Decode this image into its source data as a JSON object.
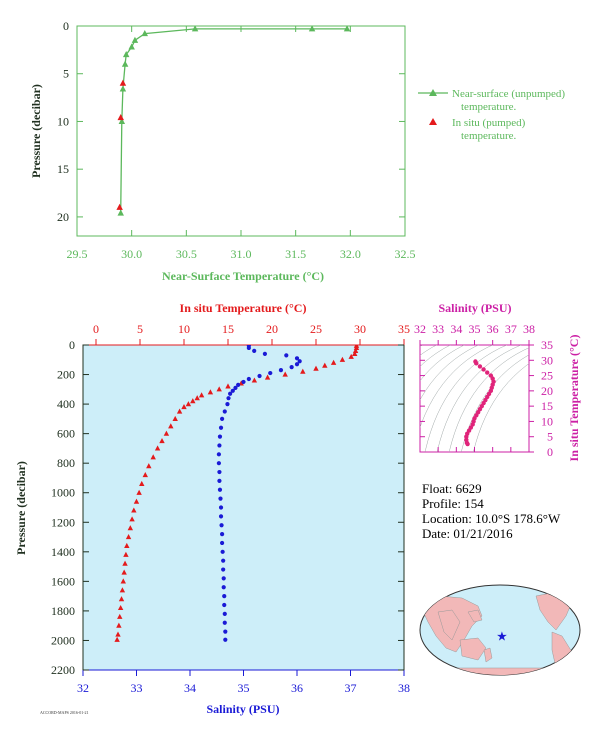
{
  "chart_data": [
    {
      "id": "near-surface",
      "type": "line",
      "xlabel": "Near-Surface Temperature (°C)",
      "ylabel": "Pressure (decibar)",
      "xlim": [
        29.5,
        32.5
      ],
      "ylim": [
        22,
        0
      ],
      "x_ticks": [
        29.5,
        30,
        30.5,
        31,
        31.5,
        32,
        32.5
      ],
      "x_tick_labels": [
        "29.5",
        "30.0",
        "30.5",
        "31.0",
        "31.5",
        "32.0",
        "32.5"
      ],
      "y_ticks": [
        0,
        5,
        10,
        15,
        20
      ],
      "y_tick_labels": [
        "0",
        "5",
        "10",
        "15",
        "20"
      ],
      "legend_position": "right",
      "series": [
        {
          "name": "Near-surface (unpumped) temperature.",
          "color": "#5cb85c",
          "marker": "triangle",
          "line": true,
          "points": [
            [
              31.97,
              0.3
            ],
            [
              31.65,
              0.3
            ],
            [
              30.58,
              0.3
            ],
            [
              30.12,
              0.8
            ],
            [
              30.03,
              1.5
            ],
            [
              30.0,
              2.2
            ],
            [
              29.95,
              3.0
            ],
            [
              29.94,
              4.0
            ],
            [
              29.92,
              6.6
            ],
            [
              29.91,
              10.0
            ],
            [
              29.9,
              19.6
            ]
          ]
        },
        {
          "name": "In situ (pumped) temperature.",
          "color": "#e41a1c",
          "marker": "triangle",
          "line": false,
          "points": [
            [
              29.92,
              6.0
            ],
            [
              29.9,
              9.6
            ],
            [
              29.89,
              19.0
            ]
          ]
        }
      ]
    },
    {
      "id": "profile",
      "type": "line",
      "xlabel_top": "In situ Temperature (°C)",
      "xlabel_bottom": "Salinity (PSU)",
      "ylabel": "Pressure (decibar)",
      "xlim_top": [
        0,
        35
      ],
      "xlim_bottom": [
        32,
        38
      ],
      "ylim": [
        2200,
        0
      ],
      "top_ticks": [
        0,
        5,
        10,
        15,
        20,
        25,
        30,
        35
      ],
      "top_tick_labels": [
        "0",
        "5",
        "10",
        "15",
        "20",
        "25",
        "30",
        "35"
      ],
      "bottom_ticks": [
        32,
        33,
        34,
        35,
        36,
        37,
        38
      ],
      "bottom_tick_labels": [
        "32",
        "33",
        "34",
        "35",
        "36",
        "37",
        "38"
      ],
      "y_ticks": [
        0,
        200,
        400,
        600,
        800,
        1000,
        1200,
        1400,
        1600,
        1800,
        2000,
        2200
      ],
      "y_tick_labels": [
        "0",
        "200",
        "400",
        "600",
        "800",
        "1000",
        "1200",
        "1400",
        "1600",
        "1800",
        "2000",
        "2200"
      ],
      "series": [
        {
          "name": "temperature",
          "color": "#e41a1c",
          "marker": "triangle",
          "points": [
            [
              29.6,
              5
            ],
            [
              29.6,
              20
            ],
            [
              29.5,
              40
            ],
            [
              29.4,
              60
            ],
            [
              29.0,
              80
            ],
            [
              28.0,
              100
            ],
            [
              27.0,
              120
            ],
            [
              26.0,
              140
            ],
            [
              25.0,
              160
            ],
            [
              23.5,
              180
            ],
            [
              21.5,
              200
            ],
            [
              19.5,
              220
            ],
            [
              18.0,
              240
            ],
            [
              16.5,
              260
            ],
            [
              15.0,
              280
            ],
            [
              14.0,
              300
            ],
            [
              13.0,
              320
            ],
            [
              12.0,
              340
            ],
            [
              11.5,
              360
            ],
            [
              11.0,
              380
            ],
            [
              10.5,
              400
            ],
            [
              10.0,
              420
            ],
            [
              9.5,
              450
            ],
            [
              9.0,
              500
            ],
            [
              8.5,
              550
            ],
            [
              8.0,
              600
            ],
            [
              7.5,
              650
            ],
            [
              7.0,
              700
            ],
            [
              6.5,
              760
            ],
            [
              6.0,
              820
            ],
            [
              5.6,
              880
            ],
            [
              5.2,
              940
            ],
            [
              4.9,
              1000
            ],
            [
              4.6,
              1060
            ],
            [
              4.3,
              1120
            ],
            [
              4.1,
              1180
            ],
            [
              3.9,
              1240
            ],
            [
              3.7,
              1300
            ],
            [
              3.5,
              1360
            ],
            [
              3.4,
              1420
            ],
            [
              3.3,
              1480
            ],
            [
              3.2,
              1540
            ],
            [
              3.1,
              1600
            ],
            [
              3.0,
              1660
            ],
            [
              2.9,
              1720
            ],
            [
              2.8,
              1780
            ],
            [
              2.7,
              1840
            ],
            [
              2.6,
              1900
            ],
            [
              2.5,
              1960
            ],
            [
              2.4,
              1995
            ]
          ]
        },
        {
          "name": "salinity",
          "color": "#1a1ad6",
          "marker": "circle",
          "points": [
            [
              35.1,
              5
            ],
            [
              35.1,
              20
            ],
            [
              35.2,
              40
            ],
            [
              35.4,
              60
            ],
            [
              35.8,
              70
            ],
            [
              36.0,
              90
            ],
            [
              36.05,
              110
            ],
            [
              36.0,
              130
            ],
            [
              35.9,
              150
            ],
            [
              35.7,
              170
            ],
            [
              35.5,
              190
            ],
            [
              35.3,
              210
            ],
            [
              35.1,
              230
            ],
            [
              35.0,
              250
            ],
            [
              34.9,
              270
            ],
            [
              34.85,
              290
            ],
            [
              34.8,
              310
            ],
            [
              34.75,
              330
            ],
            [
              34.72,
              360
            ],
            [
              34.7,
              400
            ],
            [
              34.65,
              450
            ],
            [
              34.6,
              500
            ],
            [
              34.58,
              560
            ],
            [
              34.56,
              620
            ],
            [
              34.55,
              680
            ],
            [
              34.54,
              740
            ],
            [
              34.54,
              800
            ],
            [
              34.55,
              860
            ],
            [
              34.55,
              920
            ],
            [
              34.56,
              980
            ],
            [
              34.57,
              1040
            ],
            [
              34.58,
              1100
            ],
            [
              34.58,
              1160
            ],
            [
              34.59,
              1220
            ],
            [
              34.6,
              1280
            ],
            [
              34.6,
              1340
            ],
            [
              34.61,
              1400
            ],
            [
              34.62,
              1460
            ],
            [
              34.62,
              1520
            ],
            [
              34.63,
              1580
            ],
            [
              34.63,
              1640
            ],
            [
              34.64,
              1700
            ],
            [
              34.64,
              1760
            ],
            [
              34.65,
              1820
            ],
            [
              34.65,
              1880
            ],
            [
              34.66,
              1940
            ],
            [
              34.66,
              1995
            ]
          ]
        }
      ]
    },
    {
      "id": "ts-diagram",
      "type": "scatter",
      "title": "Salinity (PSU)",
      "ylabel": "In situ Temperature (°C)",
      "xlim": [
        32,
        38
      ],
      "ylim": [
        0,
        35
      ],
      "x_ticks": [
        32,
        33,
        34,
        35,
        36,
        37,
        38
      ],
      "x_tick_labels": [
        "32",
        "33",
        "34",
        "35",
        "36",
        "37",
        "38"
      ],
      "y_ticks": [
        0,
        5,
        10,
        15,
        20,
        25,
        30,
        35
      ],
      "y_tick_labels": [
        "0",
        "5",
        "10",
        "15",
        "20",
        "25",
        "30",
        "35"
      ],
      "series": [
        {
          "name": "TS",
          "color": "#e0247a",
          "marker": "circle",
          "points": [
            [
              35.05,
              29.6
            ],
            [
              35.1,
              29.0
            ],
            [
              35.3,
              28.0
            ],
            [
              35.5,
              27.0
            ],
            [
              35.7,
              26.0
            ],
            [
              35.9,
              25.0
            ],
            [
              36.0,
              24.0
            ],
            [
              36.05,
              23.0
            ],
            [
              36.0,
              22.0
            ],
            [
              35.95,
              21.0
            ],
            [
              35.9,
              20.0
            ],
            [
              35.8,
              19.0
            ],
            [
              35.7,
              18.0
            ],
            [
              35.6,
              17.0
            ],
            [
              35.5,
              16.0
            ],
            [
              35.4,
              15.0
            ],
            [
              35.3,
              14.0
            ],
            [
              35.2,
              13.0
            ],
            [
              35.1,
              12.0
            ],
            [
              35.0,
              11.0
            ],
            [
              34.95,
              10.0
            ],
            [
              34.9,
              9.0
            ],
            [
              34.8,
              8.0
            ],
            [
              34.7,
              7.0
            ],
            [
              34.6,
              6.0
            ],
            [
              34.55,
              5.0
            ],
            [
              34.55,
              4.0
            ],
            [
              34.58,
              3.0
            ],
            [
              34.62,
              2.6
            ]
          ]
        }
      ]
    }
  ],
  "float_info": {
    "float_label": "Float:",
    "float_value": "6629",
    "profile_label": "Profile:",
    "profile_value": "154",
    "location_label": "Location:",
    "location_value": "10.0°S 178.6°W",
    "date_label": "Date:",
    "date_value": "01/21/2016"
  },
  "footer_text": "ACCORD-MAPS 2016-01-21",
  "colors": {
    "green": "#5cb85c",
    "red": "#e41a1c",
    "blue": "#1a1ad6",
    "magenta": "#cc1fa5",
    "axis_dark": "#203020",
    "plot_bg": "#cdeef9",
    "land": "#f2b8b8"
  }
}
